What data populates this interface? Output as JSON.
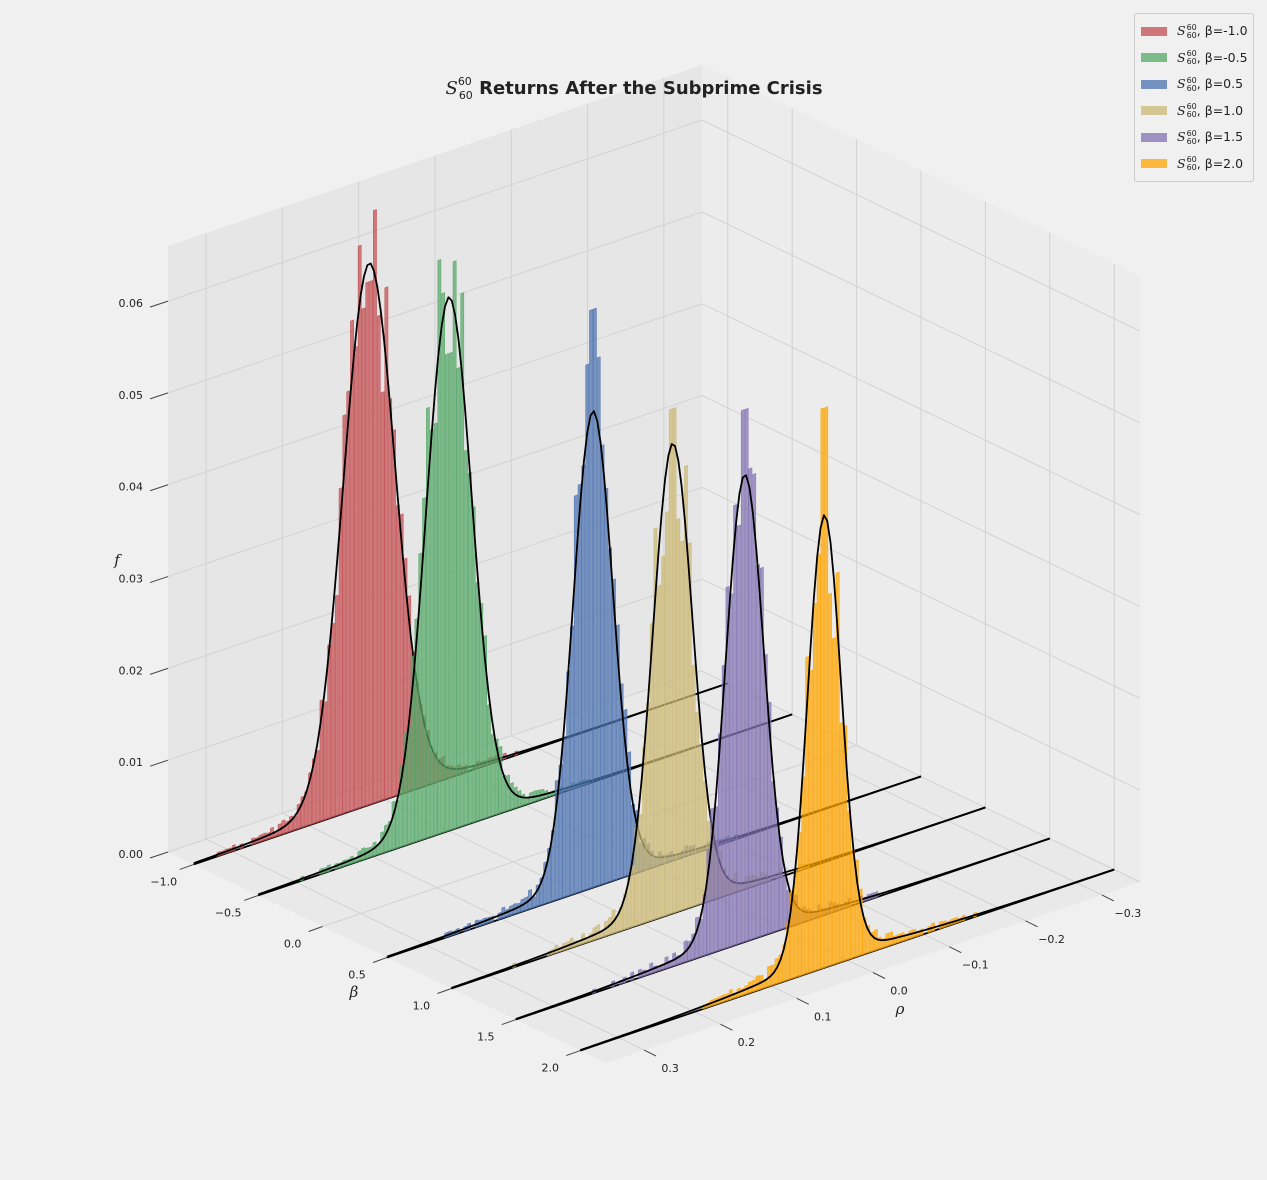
{
  "chart_data": {
    "type": "bar",
    "title_main": "S",
    "title_sup": "60",
    "title_sub": "60",
    "title_rest": " Returns After the Subprime Crisis",
    "xlabel": "β",
    "ylabel": "ρ",
    "zlabel": "f",
    "x_ticks": [
      "−1.0",
      "−0.5",
      "0.0",
      "0.5",
      "1.0",
      "1.5",
      "2.0"
    ],
    "x_tick_values": [
      -1.0,
      -0.5,
      0.0,
      0.5,
      1.0,
      1.5,
      2.0
    ],
    "y_ticks": [
      "−0.3",
      "−0.2",
      "−0.1",
      "0.0",
      "0.1",
      "0.2",
      "0.3"
    ],
    "y_tick_values": [
      -0.3,
      -0.2,
      -0.1,
      0.0,
      0.1,
      0.2,
      0.3
    ],
    "z_ticks": [
      "0.00",
      "0.01",
      "0.02",
      "0.03",
      "0.04",
      "0.05",
      "0.06"
    ],
    "z_tick_values": [
      0.0,
      0.01,
      0.02,
      0.03,
      0.04,
      0.05,
      0.06
    ],
    "xlim": [
      -1.2,
      2.2
    ],
    "ylim": [
      -0.35,
      0.35
    ],
    "zlim": [
      0.0,
      0.066
    ],
    "grid": true,
    "legend_position": "top-right",
    "series": [
      {
        "name": "S_60^60, β=-1.0",
        "beta": -1.0,
        "mu": 0.12,
        "sigma": 0.034,
        "peak": 0.0573,
        "hist_max": 0.057
      },
      {
        "name": "S_60^60, β=-0.5",
        "beta": -0.5,
        "mu": 0.1,
        "sigma": 0.03,
        "peak": 0.0564,
        "hist_max": 0.052
      },
      {
        "name": "S_60^60, β=0.5",
        "beta": 0.5,
        "mu": 0.08,
        "sigma": 0.026,
        "peak": 0.0502,
        "hist_max": 0.063
      },
      {
        "name": "S_60^60, β=1.0",
        "beta": 1.0,
        "mu": 0.06,
        "sigma": 0.026,
        "peak": 0.0495,
        "hist_max": 0.055
      },
      {
        "name": "S_60^60, β=1.5",
        "beta": 1.5,
        "mu": 0.05,
        "sigma": 0.025,
        "peak": 0.0492,
        "hist_max": 0.058
      },
      {
        "name": "S_60^60, β=2.0",
        "beta": 2.0,
        "mu": 0.03,
        "sigma": 0.022,
        "peak": 0.0476,
        "hist_max": 0.061
      }
    ],
    "colors": [
      "#c44e52",
      "#55a868",
      "#4c72b0",
      "#ccb974",
      "#8172b2",
      "#ffa500"
    ]
  },
  "legend": {
    "items": [
      {
        "sym": "S",
        "sup": "60",
        "sub": "60",
        "rest": ", β=-1.0",
        "color": "#c44e52"
      },
      {
        "sym": "S",
        "sup": "60",
        "sub": "60",
        "rest": ", β=-0.5",
        "color": "#55a868"
      },
      {
        "sym": "S",
        "sup": "60",
        "sub": "60",
        "rest": ", β=0.5",
        "color": "#4c72b0"
      },
      {
        "sym": "S",
        "sup": "60",
        "sub": "60",
        "rest": ", β=1.0",
        "color": "#ccb974"
      },
      {
        "sym": "S",
        "sup": "60",
        "sub": "60",
        "rest": ", β=1.5",
        "color": "#8172b2"
      },
      {
        "sym": "S",
        "sup": "60",
        "sub": "60",
        "rest": ", β=2.0",
        "color": "#ffa500"
      }
    ]
  }
}
